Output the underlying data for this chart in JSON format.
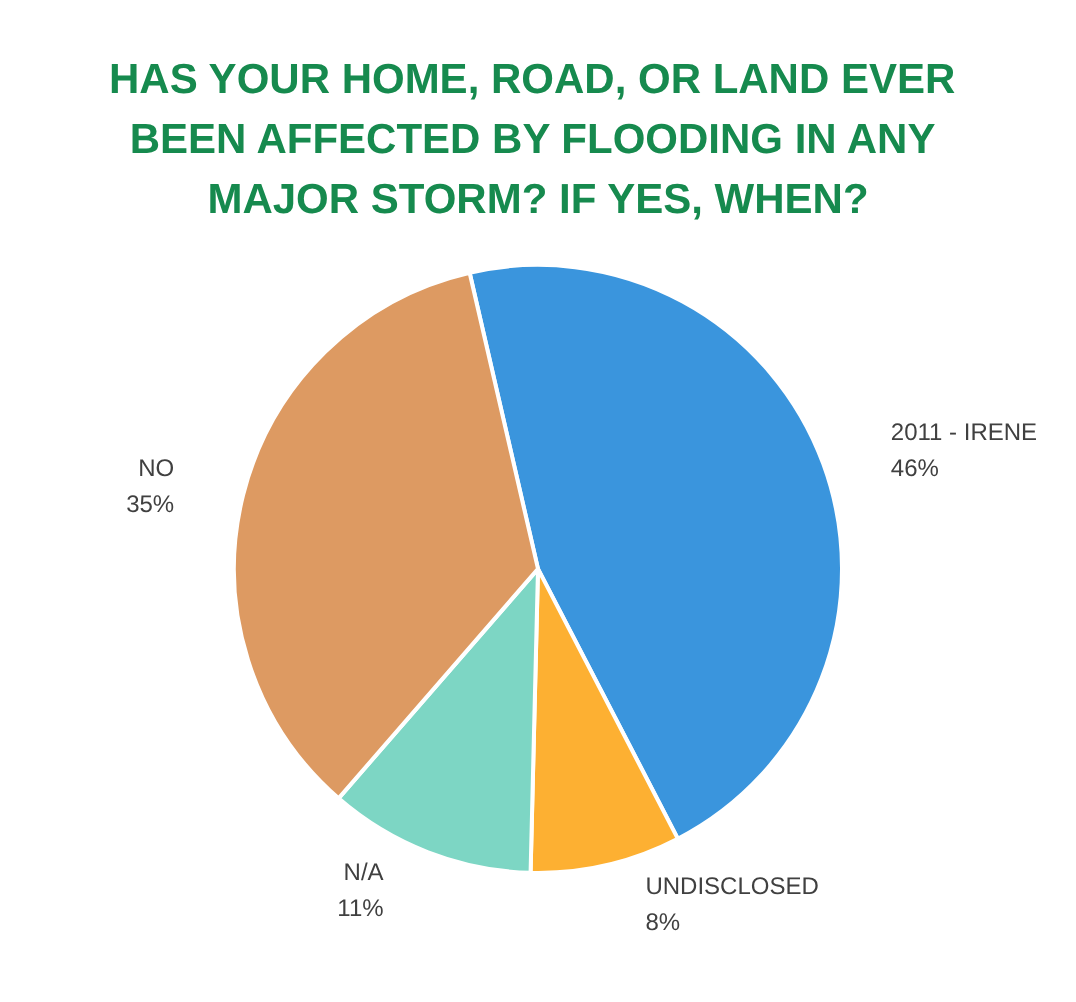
{
  "chart_data": {
    "type": "pie",
    "title": "HAS YOUR HOME, ROAD, OR LAND EVER BEEN AFFECTED BY FLOODING IN ANY MAJOR STORM? IF YES, WHEN?",
    "categories": [
      "2011 - IRENE",
      "UNDISCLOSED",
      "N/A",
      "NO"
    ],
    "values": [
      46,
      8,
      11,
      35
    ],
    "colors": [
      "#3a95dd",
      "#fdb032",
      "#7dd6c4",
      "#dd9a62"
    ],
    "value_labels": [
      "46%",
      "8%",
      "11%",
      "35%"
    ],
    "legend": false
  }
}
